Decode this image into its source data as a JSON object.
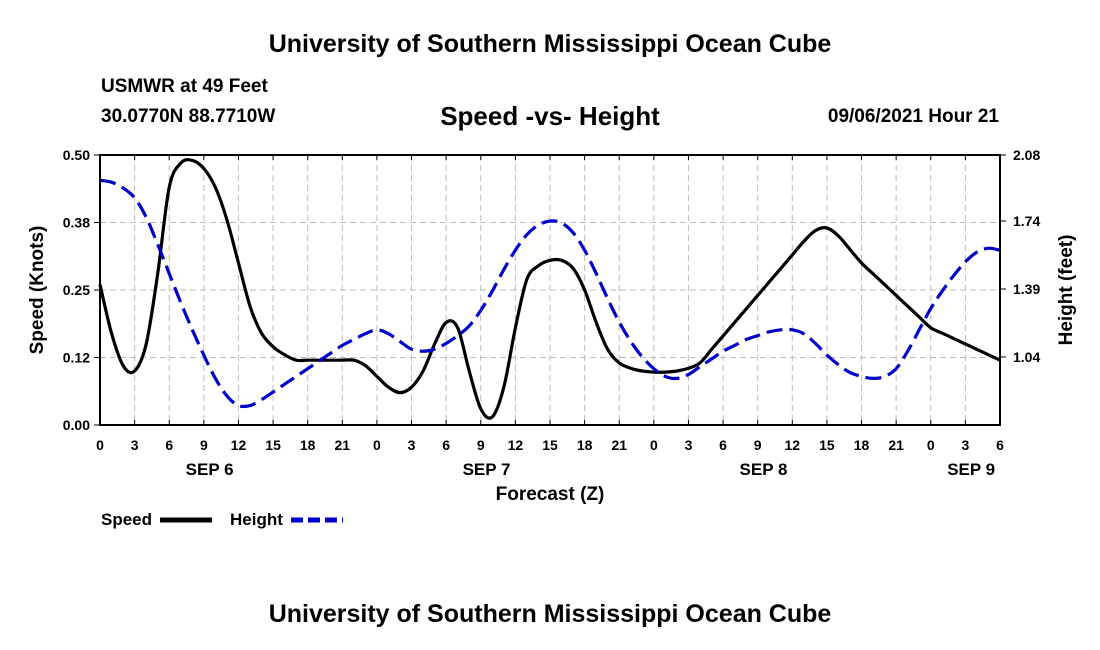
{
  "header": {
    "title": "University of Southern Mississippi Ocean Cube",
    "station": "USMWR at 49 Feet",
    "coords": "30.0770N  88.7710W",
    "chart_title": "Speed -vs- Height",
    "datetime": "09/06/2021 Hour 21"
  },
  "footer": {
    "title": "University of Southern Mississippi Ocean Cube"
  },
  "colors": {
    "speed": "#000000",
    "height": "#0000cc",
    "grid": "#bbbbbb"
  },
  "legend": {
    "speed_label": "Speed",
    "height_label": "Height"
  },
  "chart_data": {
    "type": "line",
    "title": "Speed -vs- Height",
    "xlabel": "Forecast (Z)",
    "ylabel": "Speed (Knots)",
    "y2label": "Height (feet)",
    "xlim": [
      0,
      78
    ],
    "ylim": [
      0,
      0.5
    ],
    "y2lim": [
      0.69,
      2.08
    ],
    "x_tick_labels": [
      "0",
      "3",
      "6",
      "9",
      "12",
      "15",
      "18",
      "21",
      "0",
      "3",
      "6",
      "9",
      "12",
      "15",
      "18",
      "21",
      "0",
      "3",
      "6",
      "9",
      "12",
      "15",
      "18",
      "21",
      "0",
      "3",
      "6"
    ],
    "day_labels": [
      {
        "label": "SEP 6",
        "x": 9.5
      },
      {
        "label": "SEP 7",
        "x": 33.5
      },
      {
        "label": "SEP 8",
        "x": 57.5
      },
      {
        "label": "SEP 9",
        "x": 75.5
      }
    ],
    "y_ticks": [
      "0.00",
      "0.12",
      "0.25",
      "0.38",
      "0.50"
    ],
    "y2_ticks": [
      "1.04",
      "1.39",
      "1.74",
      "2.08"
    ],
    "series": [
      {
        "name": "Speed",
        "axis": "left",
        "x": [
          0,
          1,
          2,
          3,
          4,
          5,
          6,
          7,
          8,
          9,
          10,
          11,
          12,
          13,
          14,
          15,
          16,
          17,
          18,
          19,
          20,
          21,
          22,
          23,
          24,
          25,
          26,
          27,
          28,
          29,
          30,
          31,
          32,
          33,
          34,
          35,
          36,
          37,
          38,
          39,
          40,
          41,
          42,
          43,
          44,
          45,
          46,
          47,
          48,
          49,
          50,
          51,
          52,
          53,
          54,
          55,
          56,
          57,
          58,
          59,
          60,
          61,
          62,
          63,
          64,
          65,
          66,
          67,
          68,
          69,
          70,
          71,
          72,
          73,
          74,
          75,
          76,
          77,
          78
        ],
        "values": [
          0.26,
          0.17,
          0.11,
          0.1,
          0.15,
          0.28,
          0.44,
          0.485,
          0.49,
          0.475,
          0.44,
          0.38,
          0.3,
          0.22,
          0.17,
          0.145,
          0.13,
          0.12,
          0.12,
          0.12,
          0.12,
          0.12,
          0.12,
          0.11,
          0.09,
          0.07,
          0.06,
          0.07,
          0.1,
          0.15,
          0.19,
          0.18,
          0.1,
          0.03,
          0.015,
          0.07,
          0.18,
          0.27,
          0.295,
          0.305,
          0.305,
          0.29,
          0.25,
          0.19,
          0.14,
          0.115,
          0.105,
          0.1,
          0.098,
          0.098,
          0.1,
          0.105,
          0.115,
          0.14,
          0.165,
          0.19,
          0.215,
          0.24,
          0.265,
          0.29,
          0.315,
          0.34,
          0.36,
          0.365,
          0.35,
          0.325,
          0.3,
          0.28,
          0.26,
          0.24,
          0.22,
          0.2,
          0.18,
          0.17,
          0.16,
          0.15,
          0.14,
          0.13,
          0.12
        ]
      },
      {
        "name": "Height",
        "axis": "right",
        "x": [
          0,
          1,
          2,
          3,
          4,
          5,
          6,
          7,
          8,
          9,
          10,
          11,
          12,
          13,
          14,
          15,
          16,
          17,
          18,
          19,
          20,
          21,
          22,
          23,
          24,
          25,
          26,
          27,
          28,
          29,
          30,
          31,
          32,
          33,
          34,
          35,
          36,
          37,
          38,
          39,
          40,
          41,
          42,
          43,
          44,
          45,
          46,
          47,
          48,
          49,
          50,
          51,
          52,
          53,
          54,
          55,
          56,
          57,
          58,
          59,
          60,
          61,
          62,
          63,
          64,
          65,
          66,
          67,
          68,
          69,
          70,
          71,
          72,
          73,
          74,
          75,
          76,
          77,
          78
        ],
        "values": [
          1.95,
          1.94,
          1.91,
          1.86,
          1.76,
          1.62,
          1.47,
          1.32,
          1.18,
          1.05,
          0.93,
          0.84,
          0.79,
          0.79,
          0.82,
          0.86,
          0.9,
          0.94,
          0.98,
          1.02,
          1.06,
          1.1,
          1.13,
          1.16,
          1.18,
          1.16,
          1.12,
          1.08,
          1.07,
          1.08,
          1.11,
          1.15,
          1.2,
          1.28,
          1.38,
          1.49,
          1.59,
          1.67,
          1.72,
          1.74,
          1.73,
          1.68,
          1.59,
          1.47,
          1.34,
          1.22,
          1.12,
          1.04,
          0.98,
          0.94,
          0.93,
          0.95,
          0.99,
          1.03,
          1.07,
          1.1,
          1.13,
          1.15,
          1.17,
          1.18,
          1.18,
          1.16,
          1.11,
          1.05,
          1.0,
          0.96,
          0.94,
          0.93,
          0.94,
          0.98,
          1.07,
          1.18,
          1.29,
          1.38,
          1.46,
          1.53,
          1.58,
          1.6,
          1.59
        ]
      }
    ]
  }
}
